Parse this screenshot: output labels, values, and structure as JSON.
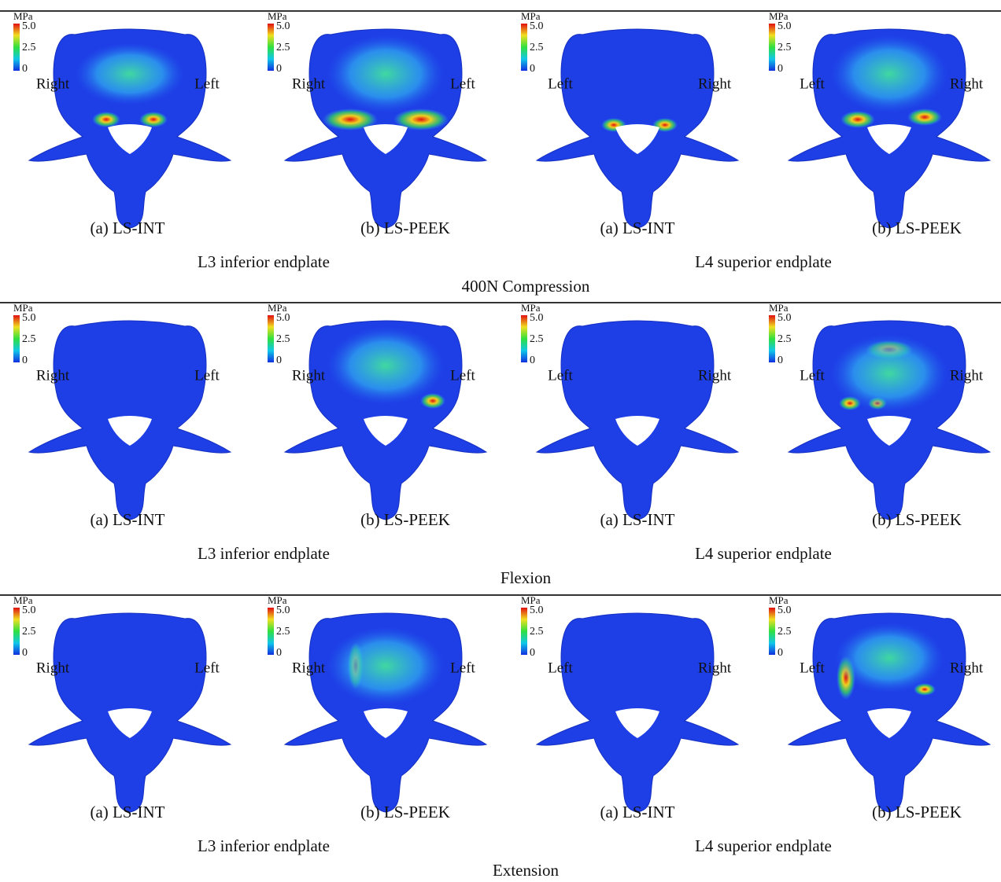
{
  "legend": {
    "unit": "MPa",
    "ticks": [
      "5.0",
      "2.5",
      "0"
    ]
  },
  "panels": [
    {
      "title": "400N Compression",
      "groups": [
        {
          "label": "L3 inferior endplate",
          "items": [
            {
              "caption": "(a) LS-INT",
              "left_label": "Right",
              "right_label": "Left"
            },
            {
              "caption": "(b) LS-PEEK",
              "left_label": "Right",
              "right_label": "Left"
            }
          ]
        },
        {
          "label": "L4 superior endplate",
          "items": [
            {
              "caption": "(a) LS-INT",
              "left_label": "Left",
              "right_label": "Right"
            },
            {
              "caption": "(b) LS-PEEK",
              "left_label": "Left",
              "right_label": "Right"
            }
          ]
        }
      ]
    },
    {
      "title": "Flexion",
      "groups": [
        {
          "label": "L3 inferior endplate",
          "items": [
            {
              "caption": "(a) LS-INT",
              "left_label": "Right",
              "right_label": "Left"
            },
            {
              "caption": "(b) LS-PEEK",
              "left_label": "Right",
              "right_label": "Left"
            }
          ]
        },
        {
          "label": "L4 superior endplate",
          "items": [
            {
              "caption": "(a) LS-INT",
              "left_label": "Left",
              "right_label": "Right"
            },
            {
              "caption": "(b) LS-PEEK",
              "left_label": "Left",
              "right_label": "Right"
            }
          ]
        }
      ]
    },
    {
      "title": "Extension",
      "groups": [
        {
          "label": "L3 inferior endplate",
          "items": [
            {
              "caption": "(a) LS-INT",
              "left_label": "Right",
              "right_label": "Left"
            },
            {
              "caption": "(b) LS-PEEK",
              "left_label": "Right",
              "right_label": "Left"
            }
          ]
        },
        {
          "label": "L4 superior endplate",
          "items": [
            {
              "caption": "(a) LS-INT",
              "left_label": "Left",
              "right_label": "Right"
            },
            {
              "caption": "(b) LS-PEEK",
              "left_label": "Left",
              "right_label": "Right"
            }
          ]
        }
      ]
    }
  ]
}
